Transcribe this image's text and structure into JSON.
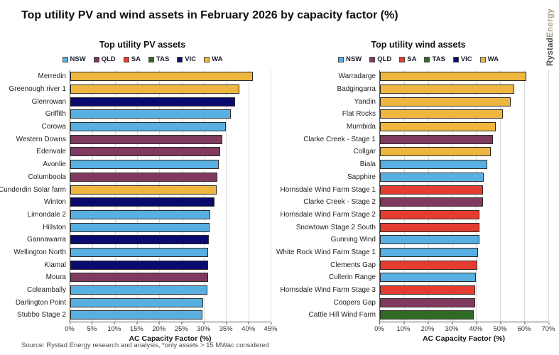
{
  "page": {
    "title": "Top utility PV and wind assets in February 2026 by capacity factor (%)",
    "source": "Source: Rystad Energy research and analysis, *only assets > 15 MWac considered",
    "brand": {
      "bold": "Rystad",
      "light": "Energy",
      "bold_color": "#4D4D4D",
      "light_color": "#AB9F8D"
    }
  },
  "colors": {
    "NSW": "#58B0E2",
    "QLD": "#803A60",
    "SA": "#E43C30",
    "TAS": "#2F6B25",
    "VIC": "#0A0A6E",
    "WA": "#EEB63F"
  },
  "chart_data": [
    {
      "type": "bar",
      "orientation": "horizontal",
      "title": "Top utility PV assets",
      "xlabel": "AC Capacity Factor (%)",
      "xlim": [
        0,
        45
      ],
      "xticks": [
        "0%",
        "5%",
        "10%",
        "15%",
        "20%",
        "25%",
        "30%",
        "35%",
        "40%",
        "45%"
      ],
      "grid": true,
      "legend_position": "top",
      "legend": [
        "NSW",
        "QLD",
        "SA",
        "TAS",
        "VIC",
        "WA"
      ],
      "categories": [
        "Merredin",
        "Greenough river 1",
        "Glenrowan",
        "Griffith",
        "Corowa",
        "Western Downs",
        "Edenvale",
        "Avonlie",
        "Columboola",
        "Cunderdin Solar farm",
        "Winton",
        "Limondale 2",
        "Hillston",
        "Gannawarra",
        "Wellington North",
        "Kiamal",
        "Moura",
        "Coleambally",
        "Darlington Point",
        "Stubbo Stage 2"
      ],
      "values": [
        41.0,
        37.9,
        37.1,
        36.0,
        35.0,
        34.2,
        33.7,
        33.3,
        33.1,
        32.8,
        32.4,
        31.5,
        31.2,
        31.1,
        31.0,
        31.0,
        31.0,
        30.8,
        29.8,
        29.7
      ],
      "states": [
        "WA",
        "WA",
        "VIC",
        "NSW",
        "NSW",
        "QLD",
        "QLD",
        "NSW",
        "QLD",
        "WA",
        "VIC",
        "NSW",
        "NSW",
        "VIC",
        "NSW",
        "VIC",
        "QLD",
        "NSW",
        "NSW",
        "NSW"
      ]
    },
    {
      "type": "bar",
      "orientation": "horizontal",
      "title": "Top utility wind assets",
      "xlabel": "AC Capacity Factor (%)",
      "xlim": [
        0,
        70
      ],
      "xticks": [
        "0%",
        "10%",
        "20%",
        "30%",
        "40%",
        "50%",
        "60%",
        "70%"
      ],
      "grid": true,
      "legend_position": "top",
      "legend": [
        "NSW",
        "QLD",
        "SA",
        "TAS",
        "VIC",
        "WA"
      ],
      "categories": [
        "Warradarge",
        "Badgingarra",
        "Yandin",
        "Flat Rocks",
        "Mumbida",
        "Clarke Creek - Stage 1",
        "Collgar",
        "Biala",
        "Sapphire",
        "Hornsdale Wind Farm Stage 1",
        "Clarke Creek - Stage 2",
        "Hornsdale Wind Farm Stage 2",
        "Snowtown Stage 2 South",
        "Gunning Wind",
        "White Rock Wind Farm Stage 1",
        "Clements Gap",
        "Cullerin Range",
        "Hornsdale Wind Farm Stage 3",
        "Coopers Gap",
        "Cattle Hill Wind Farm"
      ],
      "values": [
        60.7,
        55.7,
        54.3,
        51.2,
        48.0,
        47.0,
        46.2,
        44.7,
        43.2,
        42.8,
        42.7,
        41.4,
        41.3,
        41.3,
        40.9,
        40.4,
        39.8,
        39.7,
        39.6,
        38.9
      ],
      "states": [
        "WA",
        "WA",
        "WA",
        "WA",
        "WA",
        "QLD",
        "WA",
        "NSW",
        "NSW",
        "SA",
        "QLD",
        "SA",
        "SA",
        "NSW",
        "NSW",
        "SA",
        "NSW",
        "SA",
        "QLD",
        "TAS"
      ]
    }
  ]
}
